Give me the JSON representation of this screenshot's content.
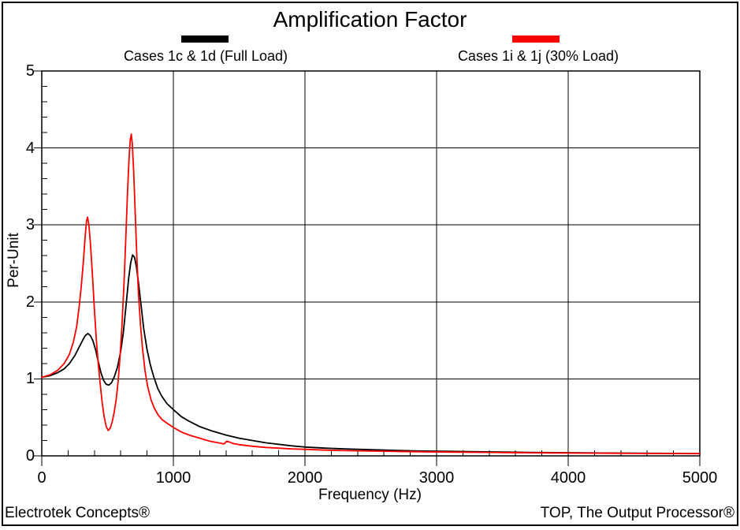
{
  "title": "Amplification Factor",
  "legend": [
    {
      "label": "Cases 1c & 1d (Full Load)",
      "color": "#000000"
    },
    {
      "label": "Cases 1i & 1j (30% Load)",
      "color": "#ff0000"
    }
  ],
  "footer": {
    "left": "Electrotek Concepts®",
    "right": "TOP, The Output Processor®"
  },
  "chart_data": {
    "type": "line",
    "title": "Amplification Factor",
    "xlabel": "Frequency (Hz)",
    "ylabel": "Per-Unit",
    "xlim": [
      0,
      5000
    ],
    "ylim": [
      0,
      5
    ],
    "grid": true,
    "legend_position": "top",
    "x_major_ticks": [
      0,
      1000,
      2000,
      3000,
      4000,
      5000
    ],
    "x_tick_labels": [
      "0",
      "1000",
      "2000",
      "3000",
      "4000",
      "5000"
    ],
    "x_minor_step": 200,
    "y_major_ticks": [
      0,
      1,
      2,
      3,
      4,
      5
    ],
    "y_tick_labels": [
      "0",
      "1",
      "2",
      "3",
      "4",
      "5"
    ],
    "y_minor_step": 0.2,
    "series": [
      {
        "name": "Cases 1c & 1d (Full Load)",
        "color": "#000000",
        "points": [
          [
            0,
            1.02
          ],
          [
            60,
            1.04
          ],
          [
            120,
            1.08
          ],
          [
            170,
            1.13
          ],
          [
            210,
            1.2
          ],
          [
            250,
            1.3
          ],
          [
            280,
            1.4
          ],
          [
            310,
            1.5
          ],
          [
            330,
            1.56
          ],
          [
            350,
            1.59
          ],
          [
            370,
            1.56
          ],
          [
            390,
            1.49
          ],
          [
            410,
            1.37
          ],
          [
            430,
            1.22
          ],
          [
            450,
            1.08
          ],
          [
            470,
            0.98
          ],
          [
            490,
            0.93
          ],
          [
            510,
            0.92
          ],
          [
            530,
            0.95
          ],
          [
            550,
            1.02
          ],
          [
            575,
            1.15
          ],
          [
            600,
            1.36
          ],
          [
            620,
            1.6
          ],
          [
            640,
            1.95
          ],
          [
            660,
            2.3
          ],
          [
            675,
            2.5
          ],
          [
            690,
            2.61
          ],
          [
            705,
            2.58
          ],
          [
            720,
            2.45
          ],
          [
            735,
            2.25
          ],
          [
            755,
            1.95
          ],
          [
            775,
            1.65
          ],
          [
            800,
            1.38
          ],
          [
            825,
            1.18
          ],
          [
            850,
            1.03
          ],
          [
            880,
            0.88
          ],
          [
            910,
            0.78
          ],
          [
            950,
            0.68
          ],
          [
            1000,
            0.6
          ],
          [
            1060,
            0.51
          ],
          [
            1120,
            0.45
          ],
          [
            1200,
            0.38
          ],
          [
            1300,
            0.32
          ],
          [
            1400,
            0.27
          ],
          [
            1500,
            0.23
          ],
          [
            1600,
            0.2
          ],
          [
            1700,
            0.17
          ],
          [
            1800,
            0.15
          ],
          [
            1900,
            0.13
          ],
          [
            2000,
            0.115
          ],
          [
            2150,
            0.1
          ],
          [
            2300,
            0.09
          ],
          [
            2500,
            0.08
          ],
          [
            2700,
            0.07
          ],
          [
            2900,
            0.063
          ],
          [
            3100,
            0.058
          ],
          [
            3300,
            0.053
          ],
          [
            3500,
            0.049
          ],
          [
            3700,
            0.045
          ],
          [
            3900,
            0.042
          ],
          [
            4100,
            0.039
          ],
          [
            4300,
            0.037
          ],
          [
            4500,
            0.035
          ],
          [
            4700,
            0.033
          ],
          [
            5000,
            0.03
          ]
        ]
      },
      {
        "name": "Cases 1i & 1j (30% Load)",
        "color": "#ff0000",
        "points": [
          [
            0,
            1.02
          ],
          [
            60,
            1.05
          ],
          [
            120,
            1.11
          ],
          [
            170,
            1.2
          ],
          [
            210,
            1.32
          ],
          [
            240,
            1.48
          ],
          [
            265,
            1.68
          ],
          [
            285,
            1.95
          ],
          [
            300,
            2.2
          ],
          [
            315,
            2.5
          ],
          [
            330,
            2.85
          ],
          [
            340,
            3.05
          ],
          [
            348,
            3.1
          ],
          [
            358,
            3.0
          ],
          [
            370,
            2.75
          ],
          [
            385,
            2.35
          ],
          [
            400,
            1.9
          ],
          [
            415,
            1.5
          ],
          [
            430,
            1.18
          ],
          [
            445,
            0.92
          ],
          [
            460,
            0.68
          ],
          [
            475,
            0.5
          ],
          [
            490,
            0.38
          ],
          [
            505,
            0.33
          ],
          [
            520,
            0.36
          ],
          [
            535,
            0.44
          ],
          [
            550,
            0.56
          ],
          [
            565,
            0.73
          ],
          [
            580,
            0.97
          ],
          [
            595,
            1.3
          ],
          [
            610,
            1.72
          ],
          [
            625,
            2.25
          ],
          [
            640,
            2.9
          ],
          [
            652,
            3.45
          ],
          [
            663,
            3.85
          ],
          [
            672,
            4.1
          ],
          [
            680,
            4.18
          ],
          [
            688,
            4.05
          ],
          [
            698,
            3.7
          ],
          [
            710,
            3.15
          ],
          [
            722,
            2.6
          ],
          [
            735,
            2.1
          ],
          [
            750,
            1.7
          ],
          [
            765,
            1.4
          ],
          [
            785,
            1.1
          ],
          [
            805,
            0.9
          ],
          [
            830,
            0.73
          ],
          [
            855,
            0.62
          ],
          [
            885,
            0.53
          ],
          [
            915,
            0.47
          ],
          [
            955,
            0.42
          ],
          [
            1000,
            0.37
          ],
          [
            1060,
            0.31
          ],
          [
            1120,
            0.27
          ],
          [
            1200,
            0.23
          ],
          [
            1280,
            0.19
          ],
          [
            1340,
            0.17
          ],
          [
            1385,
            0.155
          ],
          [
            1405,
            0.19
          ],
          [
            1425,
            0.18
          ],
          [
            1455,
            0.16
          ],
          [
            1500,
            0.145
          ],
          [
            1600,
            0.125
          ],
          [
            1700,
            0.11
          ],
          [
            1800,
            0.1
          ],
          [
            1900,
            0.09
          ],
          [
            2000,
            0.085
          ],
          [
            2150,
            0.075
          ],
          [
            2300,
            0.068
          ],
          [
            2500,
            0.062
          ],
          [
            2700,
            0.057
          ],
          [
            2900,
            0.053
          ],
          [
            3100,
            0.049
          ],
          [
            3300,
            0.046
          ],
          [
            3500,
            0.043
          ],
          [
            3700,
            0.04
          ],
          [
            3900,
            0.038
          ],
          [
            4100,
            0.036
          ],
          [
            4300,
            0.034
          ],
          [
            4500,
            0.032
          ],
          [
            4700,
            0.031
          ],
          [
            5000,
            0.029
          ]
        ]
      }
    ]
  }
}
